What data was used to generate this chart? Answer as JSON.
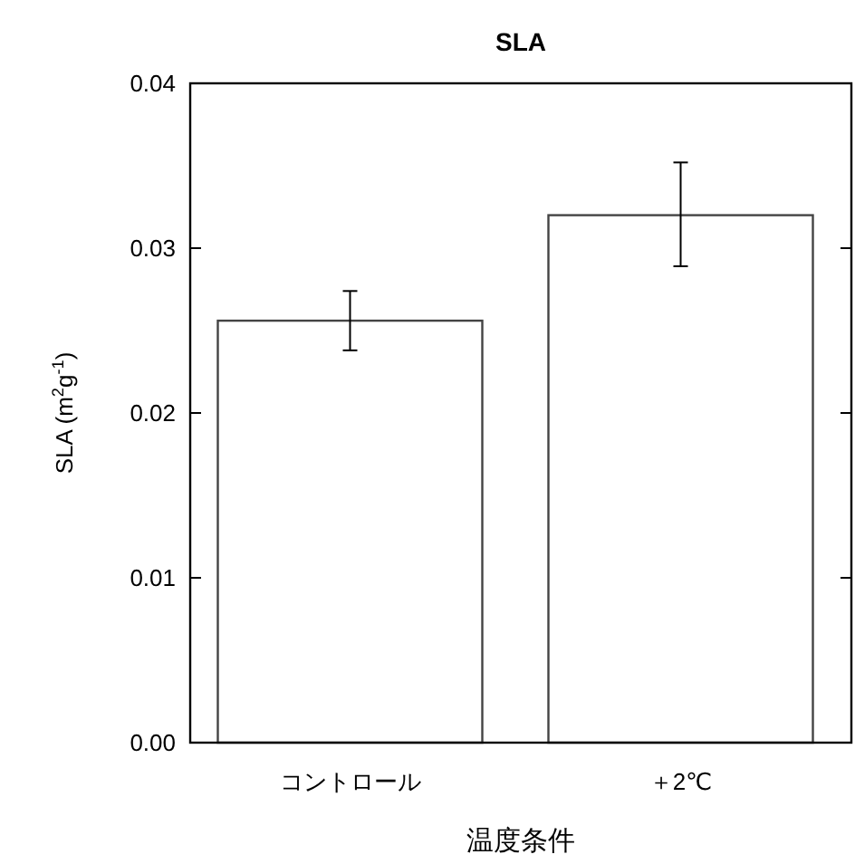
{
  "chart_data": {
    "type": "bar",
    "title": "SLA",
    "xlabel": "温度条件",
    "ylabel": "SLA (m$^{2}$g$^{-1}$)",
    "categories": [
      "コントロール",
      "＋2℃"
    ],
    "values": [
      0.0256,
      0.032
    ],
    "errors": [
      [
        0.0238,
        0.0274
      ],
      [
        0.0289,
        0.0352
      ]
    ],
    "color": "#ffffff",
    "ylim": [
      0,
      0.04
    ],
    "yticks": [
      {
        "value": 0,
        "label": "0.00"
      },
      {
        "value": 0.01,
        "label": "0.01"
      },
      {
        "value": 0.02,
        "label": "0.02"
      },
      {
        "value": 0.03,
        "label": "0.03"
      },
      {
        "value": 0.04,
        "label": "0.04"
      }
    ],
    "grid": false
  }
}
